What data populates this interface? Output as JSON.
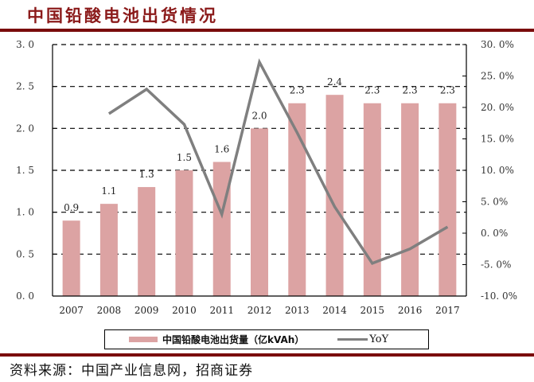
{
  "header": {
    "title": "中国铅酸电池出货情况"
  },
  "legend": {
    "bar_label": "中国铅酸电池出货量（亿kVAh）",
    "line_label": "YoY"
  },
  "footer": {
    "source": "资料来源：中国产业信息网，招商证券"
  },
  "colors": {
    "bar": "#dca3a3",
    "line": "#7f7f7f",
    "title": "#8b1a1a",
    "rule": "#7a0c0c"
  },
  "chart_data": {
    "type": "bar",
    "title": "中国铅酸电池出货情况",
    "xlabel": "",
    "ylabel": "",
    "categories": [
      "2007",
      "2008",
      "2009",
      "2010",
      "2011",
      "2012",
      "2013",
      "2014",
      "2015",
      "2016",
      "2017"
    ],
    "series": [
      {
        "name": "中国铅酸电池出货量（亿kVAh）",
        "type": "bar",
        "axis": "left",
        "values": [
          0.9,
          1.1,
          1.3,
          1.5,
          1.6,
          2.0,
          2.3,
          2.4,
          2.3,
          2.3,
          2.3
        ],
        "data_labels": [
          "0.9",
          "1.1",
          "1.3",
          "1.5",
          "1.6",
          "2.0",
          "2.3",
          "2.4",
          "2.3",
          "2.3",
          "2.3"
        ]
      },
      {
        "name": "YoY",
        "type": "line",
        "axis": "right",
        "values": [
          null,
          19.0,
          22.9,
          17.3,
          3.0,
          27.2,
          16.0,
          4.2,
          -4.8,
          -2.5,
          1.0
        ]
      }
    ],
    "ylim": [
      0.0,
      3.0
    ],
    "y_ticks": [
      "0.0",
      "0.5",
      "1.0",
      "1.5",
      "2.0",
      "2.5",
      "3.0"
    ],
    "y2lim": [
      -10.0,
      30.0
    ],
    "y2_ticks": [
      "-10.0%",
      "-5.0%",
      "0.0%",
      "5.0%",
      "10.0%",
      "15.0%",
      "20.0%",
      "25.0%",
      "30.0%"
    ],
    "grid": "horizontal dashed",
    "legend_position": "bottom"
  }
}
